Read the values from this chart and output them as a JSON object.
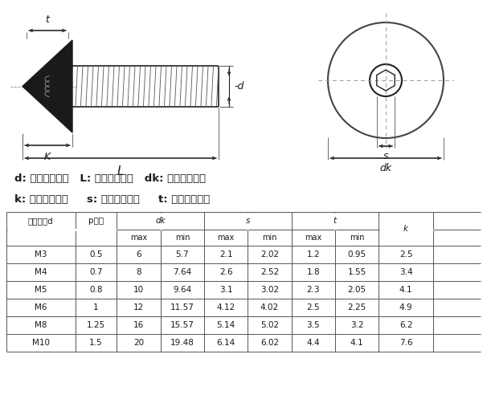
{
  "title_line1": "d: 代表螺纹直径   L: 代表螺丝长度   dk: 代表头部直径",
  "title_line2": "k: 代表头部厚度     s: 代表六角对边     t: 代表六角深度",
  "table_col0": [
    "公称直径d",
    "M3",
    "M4",
    "M5",
    "M6",
    "M8",
    "M10"
  ],
  "table_col1": [
    "p螺距",
    "0.5",
    "0.7",
    "0.8",
    "1",
    "1.25",
    "1.5"
  ],
  "table_dk_max": [
    "max",
    "6",
    "8",
    "10",
    "12",
    "16",
    "20"
  ],
  "table_dk_min": [
    "min",
    "5.7",
    "7.64",
    "9.64",
    "11.57",
    "15.57",
    "19.48"
  ],
  "table_s_max": [
    "max",
    "2.1",
    "2.6",
    "3.1",
    "4.12",
    "5.14",
    "6.14"
  ],
  "table_s_min": [
    "min",
    "2.02",
    "2.52",
    "3.02",
    "4.02",
    "5.02",
    "6.02"
  ],
  "table_t_max": [
    "max",
    "1.2",
    "1.8",
    "2.3",
    "2.5",
    "3.5",
    "4.4"
  ],
  "table_t_min": [
    "min",
    "0.95",
    "1.55",
    "2.05",
    "2.25",
    "3.2",
    "4.1"
  ],
  "table_k": [
    "k",
    "2.5",
    "3.4",
    "4.1",
    "4.9",
    "6.2",
    "7.6"
  ],
  "bg_color": "#ffffff",
  "text_color": "#1a1a1a",
  "line_color": "#444444",
  "dim_color": "#222222"
}
